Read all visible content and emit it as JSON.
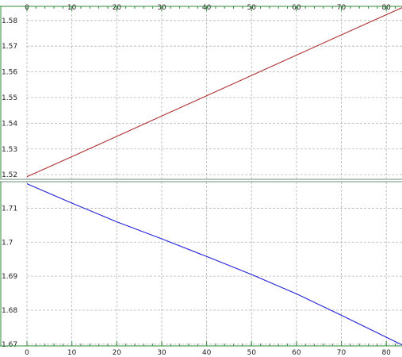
{
  "chart_data": [
    {
      "type": "line",
      "x": [
        0,
        10,
        20,
        30,
        40,
        50,
        60,
        70,
        83.5
      ],
      "xlim": [
        0,
        83.5
      ],
      "ylim": [
        1.5185,
        1.5855
      ],
      "xticks": [
        "0",
        "10",
        "20",
        "30",
        "40",
        "50",
        "60",
        "70",
        "80"
      ],
      "yticks": [
        "1.52",
        "1.53",
        "1.54",
        "1.55",
        "1.56",
        "1.57",
        "1.58"
      ],
      "grid": true,
      "xaxis_position": "top",
      "series": [
        {
          "color": "#b03030",
          "values": [
            1.5192,
            1.527,
            1.5349,
            1.5428,
            1.5507,
            1.5586,
            1.5665,
            1.5744,
            1.585
          ]
        }
      ]
    },
    {
      "type": "line",
      "x": [
        0,
        10,
        20,
        30,
        40,
        50,
        60,
        70,
        83.5
      ],
      "xlim": [
        0,
        83.5
      ],
      "ylim": [
        1.6695,
        1.7178
      ],
      "xticks": [
        "0",
        "10",
        "20",
        "30",
        "40",
        "50",
        "60",
        "70",
        "80"
      ],
      "yticks": [
        "1.67",
        "1.68",
        "1.69",
        "1.7",
        "1.71"
      ],
      "grid": true,
      "xaxis_position": "bottom",
      "series": [
        {
          "color": "#2020d8",
          "values": [
            1.7172,
            1.7115,
            1.706,
            1.701,
            1.6958,
            1.6905,
            1.6848,
            1.6785,
            1.6698
          ]
        }
      ]
    }
  ]
}
